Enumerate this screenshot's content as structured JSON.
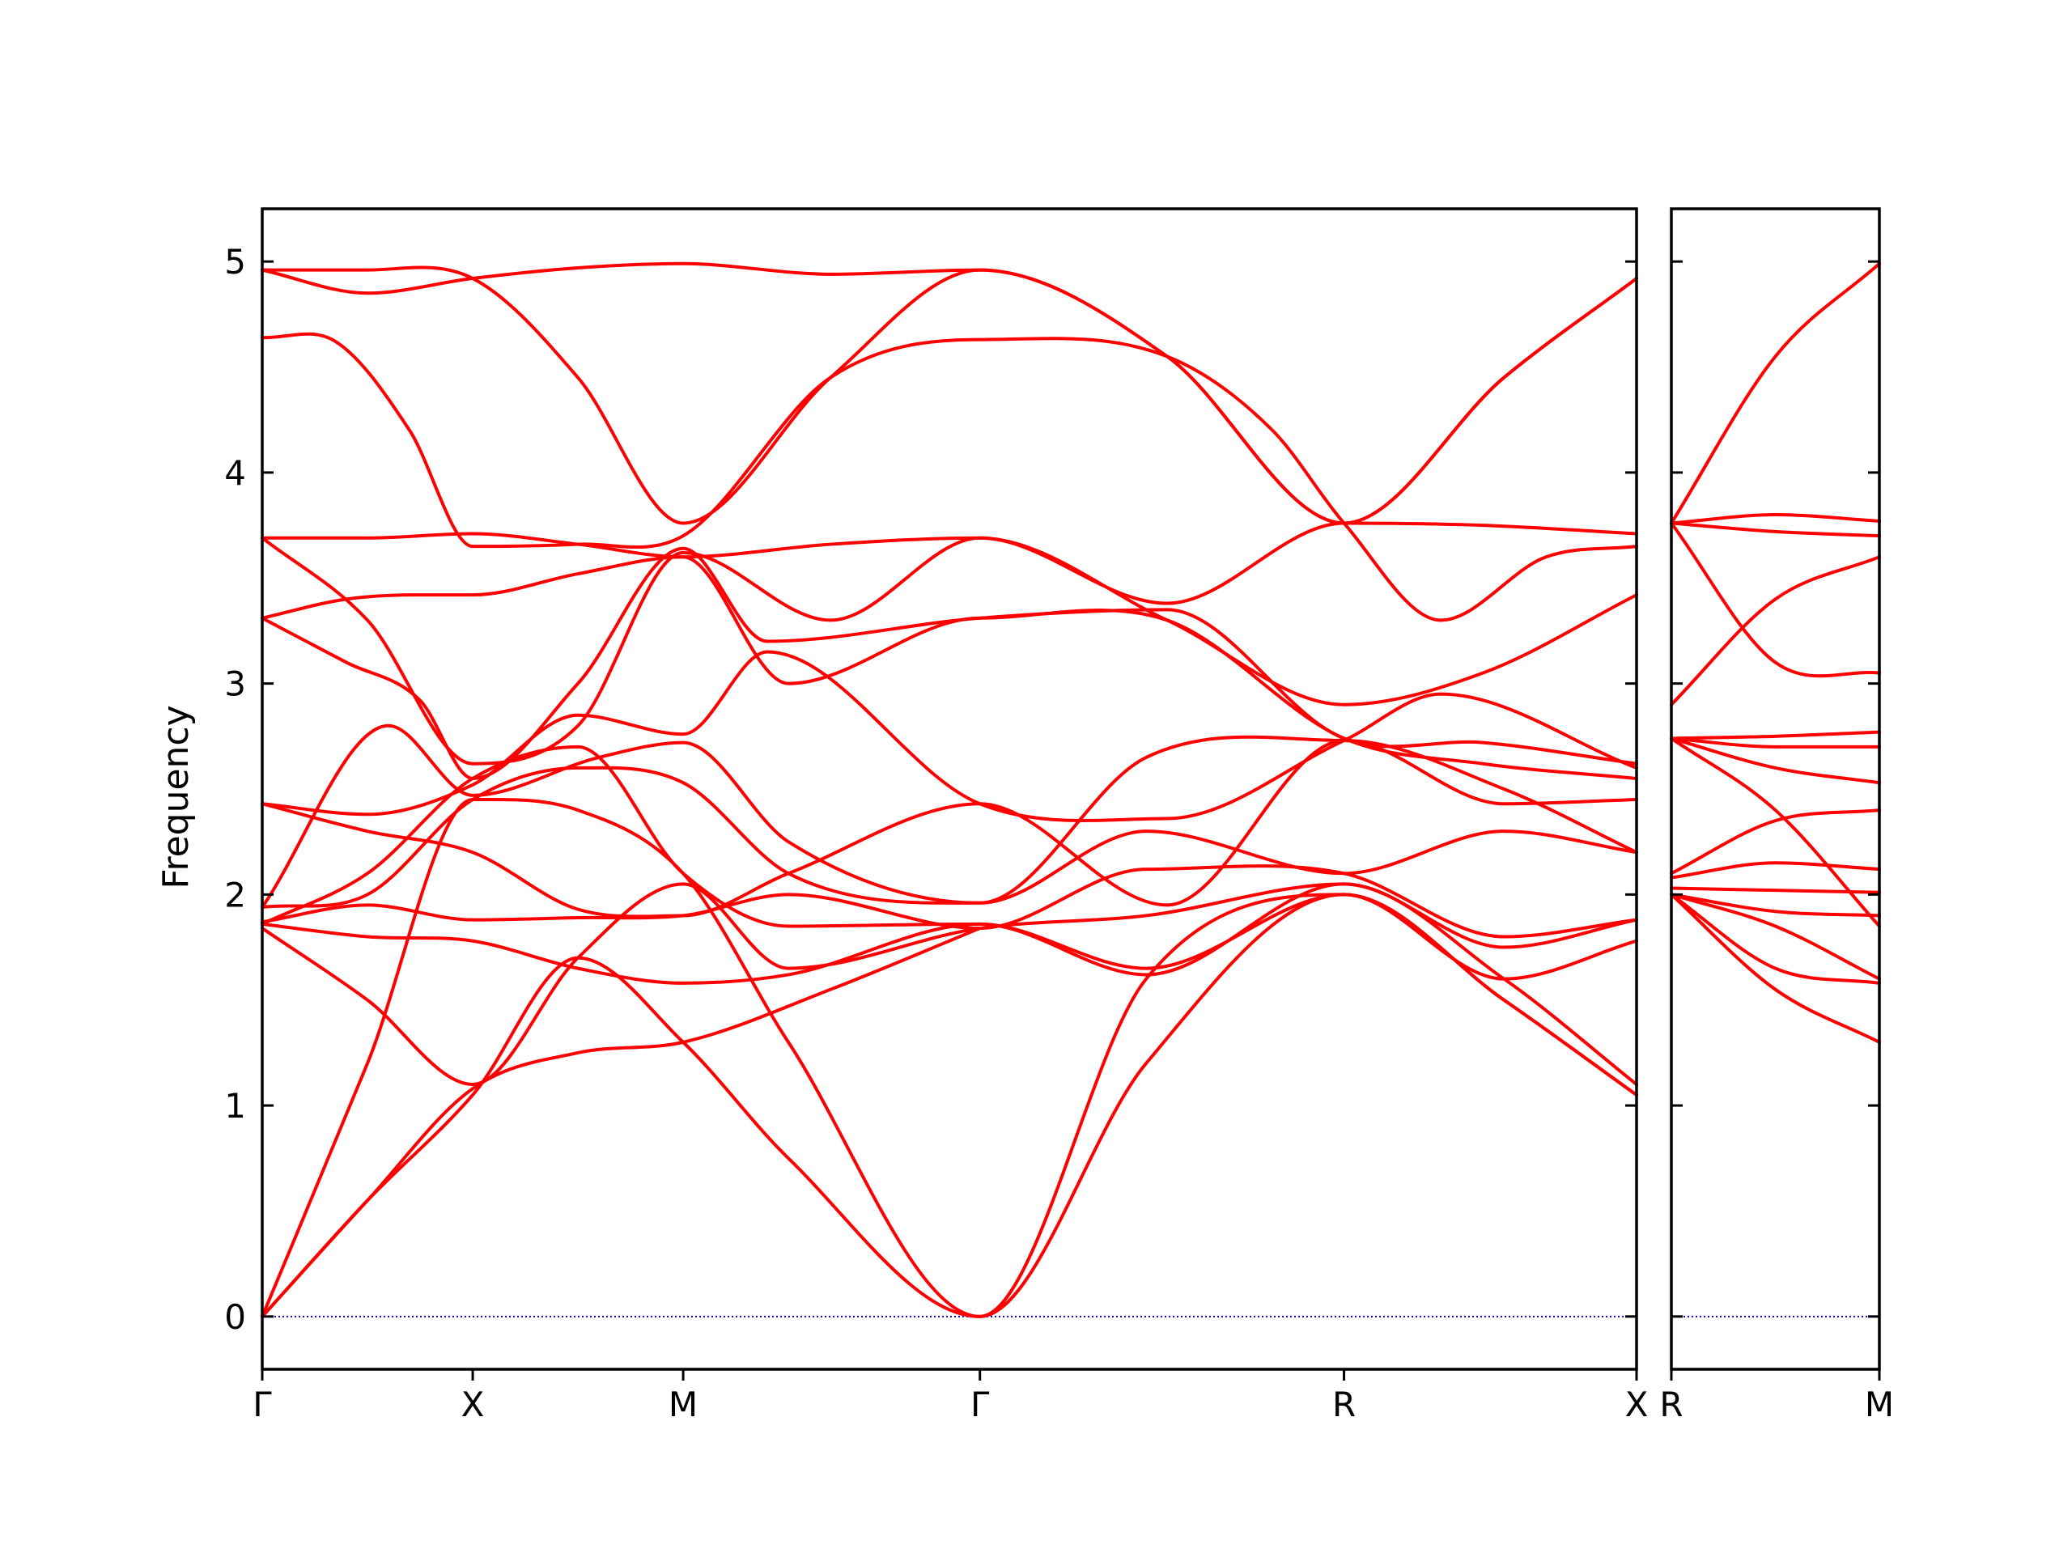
{
  "chart_data": {
    "type": "line",
    "ylabel": "Frequency",
    "ylim": [
      -0.25,
      5.25
    ],
    "yticks": [
      0,
      1,
      2,
      3,
      4,
      5
    ],
    "grid": false,
    "legend": "none",
    "colors": {
      "bands": "#ff0000",
      "zero_line": "#0000cc",
      "axes": "#000000"
    },
    "panels": [
      {
        "xlim": [
          0,
          6.53
        ],
        "xticks": [
          {
            "pos": 0,
            "label": "Γ"
          },
          {
            "pos": 1,
            "label": "X"
          },
          {
            "pos": 2,
            "label": "M"
          },
          {
            "pos": 3.41,
            "label": "Γ"
          },
          {
            "pos": 5.14,
            "label": "R"
          },
          {
            "pos": 6.53,
            "label": "X"
          }
        ],
        "series": [
          {
            "x": [
              0,
              0.5,
              1,
              1.5,
              2,
              2.7,
              3.41,
              4.3,
              5.14,
              5.9,
              6.53
            ],
            "y": [
              4.96,
              4.85,
              4.92,
              4.97,
              4.99,
              4.94,
              4.96,
              4.55,
              3.76,
              4.45,
              4.92
            ]
          },
          {
            "x": [
              0,
              0.5,
              1,
              1.5,
              2,
              2.7,
              3.41,
              4.3,
              5.14,
              5.9,
              6.53
            ],
            "y": [
              4.96,
              4.96,
              4.92,
              4.45,
              3.76,
              4.45,
              4.96,
              4.55,
              3.76,
              4.45,
              4.92
            ]
          },
          {
            "x": [
              0,
              0.35,
              0.7,
              1,
              1.5,
              2,
              2.7,
              3.41,
              4.3,
              4.8,
              5.14,
              5.6,
              6.1,
              6.53
            ],
            "y": [
              4.64,
              4.62,
              4.2,
              3.65,
              3.66,
              3.7,
              4.45,
              4.63,
              4.55,
              4.2,
              3.76,
              3.3,
              3.6,
              3.65
            ]
          },
          {
            "x": [
              0,
              0.5,
              1,
              1.5,
              2,
              2.7,
              3.41,
              4.3,
              5.14,
              5.8,
              6.53
            ],
            "y": [
              3.69,
              3.69,
              3.71,
              3.66,
              3.6,
              3.66,
              3.69,
              3.38,
              3.76,
              3.75,
              3.71
            ]
          },
          {
            "x": [
              0,
              0.5,
              1,
              1.5,
              2,
              2.7,
              3.41,
              4.3,
              5.14,
              5.8,
              6.53
            ],
            "y": [
              3.69,
              3.3,
              2.62,
              2.8,
              3.62,
              3.3,
              3.69,
              3.3,
              2.9,
              3.05,
              3.42
            ]
          },
          {
            "x": [
              0,
              0.4,
              0.75,
              1,
              1.5,
              2,
              2.4,
              3.41,
              4.3,
              5.14,
              5.8,
              6.53
            ],
            "y": [
              3.31,
              3.1,
              2.92,
              2.55,
              3.0,
              3.64,
              3.2,
              3.31,
              3.35,
              2.74,
              2.72,
              2.62
            ]
          },
          {
            "x": [
              0,
              0.4,
              0.75,
              1,
              1.5,
              2,
              2.5,
              3.41,
              4.3,
              5.14,
              5.8,
              6.53
            ],
            "y": [
              3.31,
              3.4,
              3.42,
              3.42,
              3.52,
              3.6,
              3.0,
              3.31,
              3.3,
              2.74,
              2.62,
              2.55
            ]
          },
          {
            "x": [
              0,
              0.5,
              1,
              1.5,
              2,
              2.4,
              3.41,
              4.3,
              5.14,
              5.6,
              6.53
            ],
            "y": [
              2.43,
              2.38,
              2.52,
              2.85,
              2.76,
              3.15,
              2.43,
              2.36,
              2.73,
              2.95,
              2.6
            ]
          },
          {
            "x": [
              0,
              0.5,
              1,
              1.5,
              2,
              2.5,
              3.41,
              4.3,
              5.14,
              5.9,
              6.53
            ],
            "y": [
              2.43,
              2.3,
              2.2,
              1.93,
              1.9,
              2.1,
              2.43,
              1.95,
              2.73,
              2.43,
              2.45
            ]
          },
          {
            "x": [
              0,
              0.6,
              1,
              1.6,
              2,
              2.5,
              3.41,
              4.2,
              5.14,
              5.9,
              6.53
            ],
            "y": [
              1.94,
              2.8,
              2.47,
              2.65,
              2.72,
              2.25,
              1.96,
              2.65,
              2.73,
              2.5,
              2.2
            ]
          },
          {
            "x": [
              0,
              0.5,
              1,
              1.5,
              2,
              2.5,
              3.41,
              4.2,
              5.14,
              5.9,
              6.53
            ],
            "y": [
              1.94,
              2.0,
              2.45,
              2.6,
              2.53,
              2.1,
              1.96,
              2.3,
              2.1,
              2.3,
              2.2
            ]
          },
          {
            "x": [
              0,
              0.5,
              1,
              1.5,
              2,
              2.5,
              3.41,
              4.2,
              5.14,
              5.9,
              6.53
            ],
            "y": [
              1.87,
              1.95,
              1.88,
              1.89,
              1.9,
              2.0,
              1.84,
              2.12,
              2.1,
              1.8,
              1.88
            ]
          },
          {
            "x": [
              0,
              0.5,
              1,
              1.5,
              2,
              2.5,
              3.41,
              4.2,
              5.14,
              5.9,
              6.53
            ],
            "y": [
              1.86,
              2.1,
              2.55,
              2.7,
              2.1,
              1.85,
              1.86,
              1.65,
              2.0,
              1.6,
              1.78
            ]
          },
          {
            "x": [
              0,
              0.5,
              1,
              1.5,
              2,
              2.5,
              3.41,
              4.2,
              5.14,
              5.9,
              6.53
            ],
            "y": [
              1.86,
              1.8,
              1.78,
              1.65,
              1.58,
              1.62,
              1.86,
              1.62,
              2.05,
              1.75,
              1.88
            ]
          },
          {
            "x": [
              0,
              0.5,
              1,
              1.5,
              2,
              2.5,
              3.41,
              4.2,
              5.14,
              5.9,
              6.53
            ],
            "y": [
              1.84,
              1.5,
              1.1,
              1.7,
              2.05,
              1.65,
              1.84,
              1.9,
              2.05,
              1.6,
              1.1
            ]
          },
          {
            "x": [
              0,
              0.5,
              1,
              1.5,
              2,
              2.5,
              3.41,
              4.2,
              5.14,
              5.9,
              6.53
            ],
            "y": [
              0,
              1.2,
              2.45,
              2.4,
              2.1,
              1.3,
              0,
              1.6,
              2.0,
              1.5,
              1.05
            ]
          },
          {
            "x": [
              0,
              0.5,
              1,
              1.5,
              2,
              2.5,
              3.41,
              4.2,
              5.14,
              5.9,
              6.53
            ],
            "y": [
              0,
              0.55,
              1.05,
              1.7,
              1.3,
              0.75,
              0,
              1.2,
              2.0,
              1.5,
              1.05
            ]
          },
          {
            "x": [
              0,
              0.5,
              1,
              1.5,
              2,
              2.7,
              3.41
            ],
            "y": [
              0,
              0.55,
              1.08,
              1.25,
              1.3,
              1.55,
              1.84
            ]
          }
        ]
      },
      {
        "xlim": [
          0,
          1
        ],
        "xticks": [
          {
            "pos": 0,
            "label": "R"
          },
          {
            "pos": 1,
            "label": "M"
          }
        ],
        "series": [
          {
            "x": [
              0,
              0.5,
              1
            ],
            "y": [
              3.76,
              4.55,
              4.99
            ]
          },
          {
            "x": [
              0,
              0.5,
              1
            ],
            "y": [
              3.76,
              3.8,
              3.77
            ]
          },
          {
            "x": [
              0,
              0.5,
              1
            ],
            "y": [
              3.76,
              3.72,
              3.7
            ]
          },
          {
            "x": [
              0,
              0.5,
              1
            ],
            "y": [
              3.76,
              3.1,
              3.05
            ]
          },
          {
            "x": [
              0,
              0.5,
              1
            ],
            "y": [
              2.9,
              3.4,
              3.6
            ]
          },
          {
            "x": [
              0,
              0.5,
              1
            ],
            "y": [
              2.74,
              2.75,
              2.77
            ]
          },
          {
            "x": [
              0,
              0.5,
              1
            ],
            "y": [
              2.74,
              2.7,
              2.7
            ]
          },
          {
            "x": [
              0,
              0.5,
              1
            ],
            "y": [
              2.74,
              2.6,
              2.53
            ]
          },
          {
            "x": [
              0,
              0.5,
              1
            ],
            "y": [
              2.74,
              2.4,
              1.85
            ]
          },
          {
            "x": [
              0,
              0.5,
              1
            ],
            "y": [
              2.1,
              2.35,
              2.4
            ]
          },
          {
            "x": [
              0,
              0.5,
              1
            ],
            "y": [
              2.08,
              2.15,
              2.12
            ]
          },
          {
            "x": [
              0,
              0.5,
              1
            ],
            "y": [
              2.03,
              2.02,
              2.01
            ]
          },
          {
            "x": [
              0,
              0.5,
              1
            ],
            "y": [
              2.0,
              1.85,
              1.6
            ]
          },
          {
            "x": [
              0,
              0.5,
              1
            ],
            "y": [
              2.0,
              1.65,
              1.58
            ]
          },
          {
            "x": [
              0,
              0.5,
              1
            ],
            "y": [
              2.0,
              1.55,
              1.3
            ]
          },
          {
            "x": [
              0,
              0.5,
              1
            ],
            "y": [
              2.0,
              1.92,
              1.9
            ]
          }
        ]
      }
    ]
  }
}
